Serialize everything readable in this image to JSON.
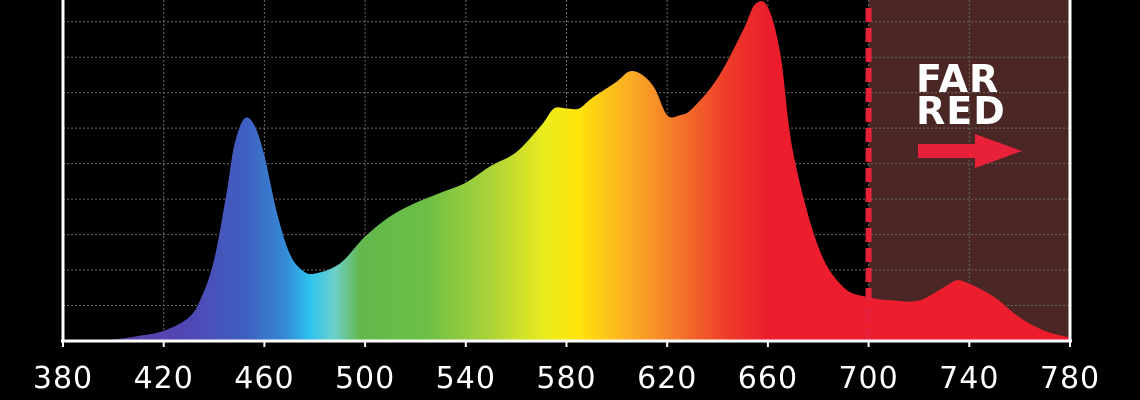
{
  "chart_data": {
    "type": "area",
    "title": "",
    "xlabel": "",
    "ylabel": "",
    "xlim": [
      380,
      780
    ],
    "ylim": [
      0,
      1
    ],
    "x_ticks": [
      380,
      420,
      460,
      500,
      540,
      580,
      620,
      660,
      700,
      740,
      780
    ],
    "grid": true,
    "series": [
      {
        "x": [
          380,
          400,
          410,
          420,
          430,
          435,
          440,
          445,
          448,
          452,
          456,
          460,
          465,
          470,
          475,
          480,
          490,
          500,
          510,
          520,
          530,
          540,
          550,
          560,
          570,
          575,
          580,
          585,
          590,
          600,
          605,
          610,
          615,
          620,
          625,
          630,
          640,
          650,
          655,
          660,
          665,
          670,
          680,
          690,
          700,
          710,
          720,
          730,
          735,
          740,
          750,
          760,
          770,
          780
        ],
        "values": [
          0.0,
          0.005,
          0.015,
          0.03,
          0.07,
          0.13,
          0.24,
          0.44,
          0.58,
          0.66,
          0.64,
          0.55,
          0.38,
          0.26,
          0.21,
          0.2,
          0.23,
          0.31,
          0.37,
          0.41,
          0.44,
          0.47,
          0.52,
          0.56,
          0.64,
          0.69,
          0.69,
          0.69,
          0.72,
          0.77,
          0.8,
          0.79,
          0.75,
          0.67,
          0.67,
          0.69,
          0.78,
          0.92,
          1.0,
          0.99,
          0.85,
          0.56,
          0.28,
          0.16,
          0.13,
          0.12,
          0.12,
          0.16,
          0.18,
          0.17,
          0.13,
          0.07,
          0.03,
          0.01
        ]
      }
    ],
    "annotations": {
      "threshold_x": 700,
      "far_red_line1": "FAR",
      "far_red_line2": "RED",
      "far_red_arrow": "right-arrow"
    },
    "colors": {
      "far_red_band": "#4a2724",
      "threshold_line": "#e8203a",
      "arrow": "#e8203a",
      "axis": "#ffffff",
      "grid": "#6a6a6a"
    }
  }
}
